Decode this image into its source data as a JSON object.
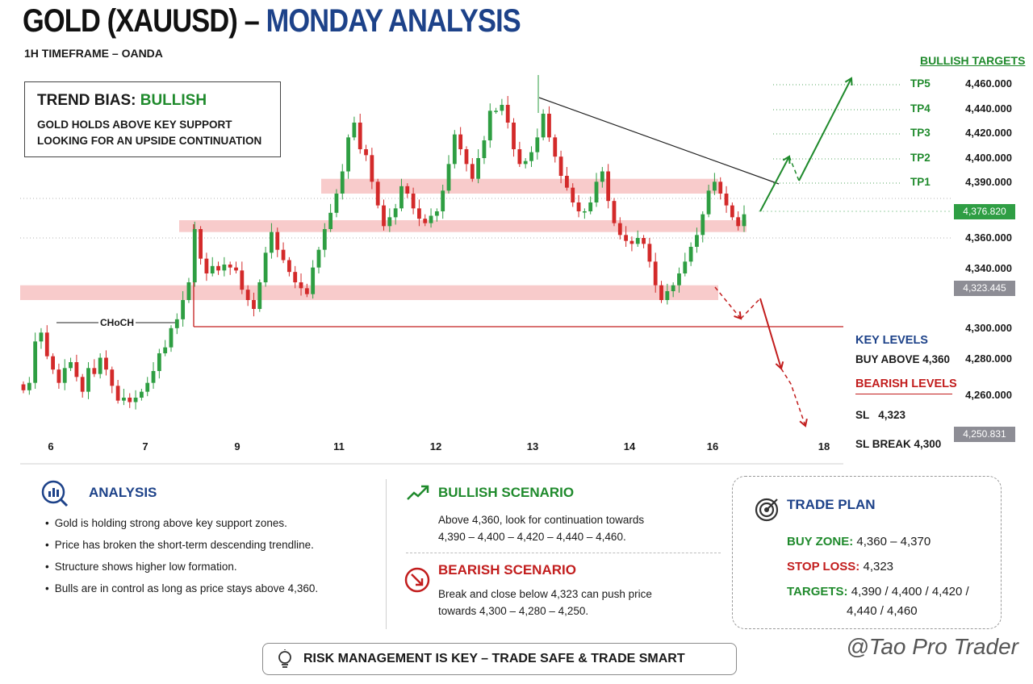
{
  "header": {
    "title_part1": "GOLD (XAUUSD) –",
    "title_part2": "MONDAY ANALYSIS",
    "subtitle": "1H TIMEFRAME – OANDA"
  },
  "trend_box": {
    "label": "TREND BIAS:",
    "value": "BULLISH",
    "line1": "GOLD HOLDS ABOVE KEY SUPPORT",
    "line2": "LOOKING FOR AN UPSIDE CONTINUATION"
  },
  "colors": {
    "bull": "#1f8a2c",
    "bear": "#c21d1d",
    "navy": "#1d4289",
    "zone": "#f6b9b9"
  },
  "chart_data": {
    "type": "candlestick",
    "x_ticks": [
      "6",
      "7",
      "9",
      "11",
      "12",
      "13",
      "14",
      "16",
      "18"
    ],
    "y_ticks": [
      "4,360.000",
      "4,340.000",
      "4,300.000",
      "4,280.000",
      "4,260.000"
    ],
    "ylim": [
      4245,
      4468
    ],
    "grid": false,
    "current_price": "4,376.820",
    "marker_price_1": "4,323.445",
    "marker_price_2": "4,250.831",
    "choch_label": "CHoCH",
    "supply_zones": [
      [
        4390,
        4400
      ],
      [
        4364,
        4372
      ],
      [
        4318,
        4328
      ]
    ],
    "bullish_targets_title": "BULLISH TARGETS",
    "targets": [
      {
        "name": "TP5",
        "value": "4,460.000",
        "price": 4460
      },
      {
        "name": "TP4",
        "value": "4,440.000",
        "price": 4440
      },
      {
        "name": "TP3",
        "value": "4,420.000",
        "price": 4420
      },
      {
        "name": "TP2",
        "value": "4,400.000",
        "price": 4400
      },
      {
        "name": "TP1",
        "value": "4,390.000",
        "price": 4390
      }
    ],
    "key_levels_title": "KEY LEVELS",
    "buy_above": "BUY ABOVE 4,360",
    "bearish_levels_title": "BEARISH LEVELS",
    "sl": "SL   4,323",
    "sl_break": "SL BREAK 4,300",
    "closes": [
      4257,
      4262,
      4290,
      4296,
      4280,
      4271,
      4262,
      4272,
      4276,
      4266,
      4256,
      4272,
      4268,
      4279,
      4271,
      4260,
      4250,
      4252,
      4249,
      4252,
      4256,
      4262,
      4270,
      4282,
      4286,
      4299,
      4305,
      4318,
      4330,
      4366,
      4346,
      4336,
      4341,
      4338,
      4342,
      4340,
      4338,
      4325,
      4318,
      4312,
      4330,
      4350,
      4364,
      4352,
      4345,
      4337,
      4330,
      4326,
      4322,
      4340,
      4352,
      4366,
      4377,
      4390,
      4405,
      4428,
      4438,
      4420,
      4416,
      4398,
      4382,
      4368,
      4374,
      4380,
      4395,
      4390,
      4380,
      4373,
      4370,
      4375,
      4378,
      4392,
      4410,
      4430,
      4420,
      4410,
      4400,
      4414,
      4426,
      4446,
      4446,
      4450,
      4438,
      4420,
      4410,
      4412,
      4418,
      4428,
      4444,
      4428,
      4415,
      4402,
      4394,
      4384,
      4378,
      4378,
      4384,
      4398,
      4405,
      4385,
      4370,
      4362,
      4358,
      4356,
      4360,
      4356,
      4344,
      4328,
      4318,
      4324,
      4328,
      4336,
      4344,
      4354,
      4362,
      4376,
      4392,
      4398,
      4390,
      4382,
      4374,
      4368,
      4376
    ]
  },
  "analysis": {
    "title": "ANALYSIS",
    "bullets": [
      "Gold is holding strong above key support zones.",
      "Price has broken the short-term descending trendline.",
      "Structure shows higher low formation.",
      "Bulls are in control as long as price stays above 4,360."
    ]
  },
  "bullish_scenario": {
    "title": "BULLISH SCENARIO",
    "line1": "Above 4,360, look for continuation towards",
    "line2": "4,390 – 4,400 – 4,420 – 4,440 – 4,460."
  },
  "bearish_scenario": {
    "title": "BEARISH SCENARIO",
    "line1": "Break and close below 4,323 can push price",
    "line2": "towards 4,300 – 4,280 – 4,250."
  },
  "trade_plan": {
    "title": "TRADE PLAN",
    "buy_zone_label": "BUY ZONE:",
    "buy_zone_value": "4,360 – 4,370",
    "stop_loss_label": "STOP LOSS:",
    "stop_loss_value": "4,323",
    "targets_label": "TARGETS:",
    "targets_value_1": "4,390 / 4,400 / 4,420 /",
    "targets_value_2": "4,440 / 4,460"
  },
  "footer": {
    "risk_text": "RISK MANAGEMENT IS KEY – TRADE SAFE & TRADE SMART",
    "watermark": "@Tao Pro Trader"
  }
}
